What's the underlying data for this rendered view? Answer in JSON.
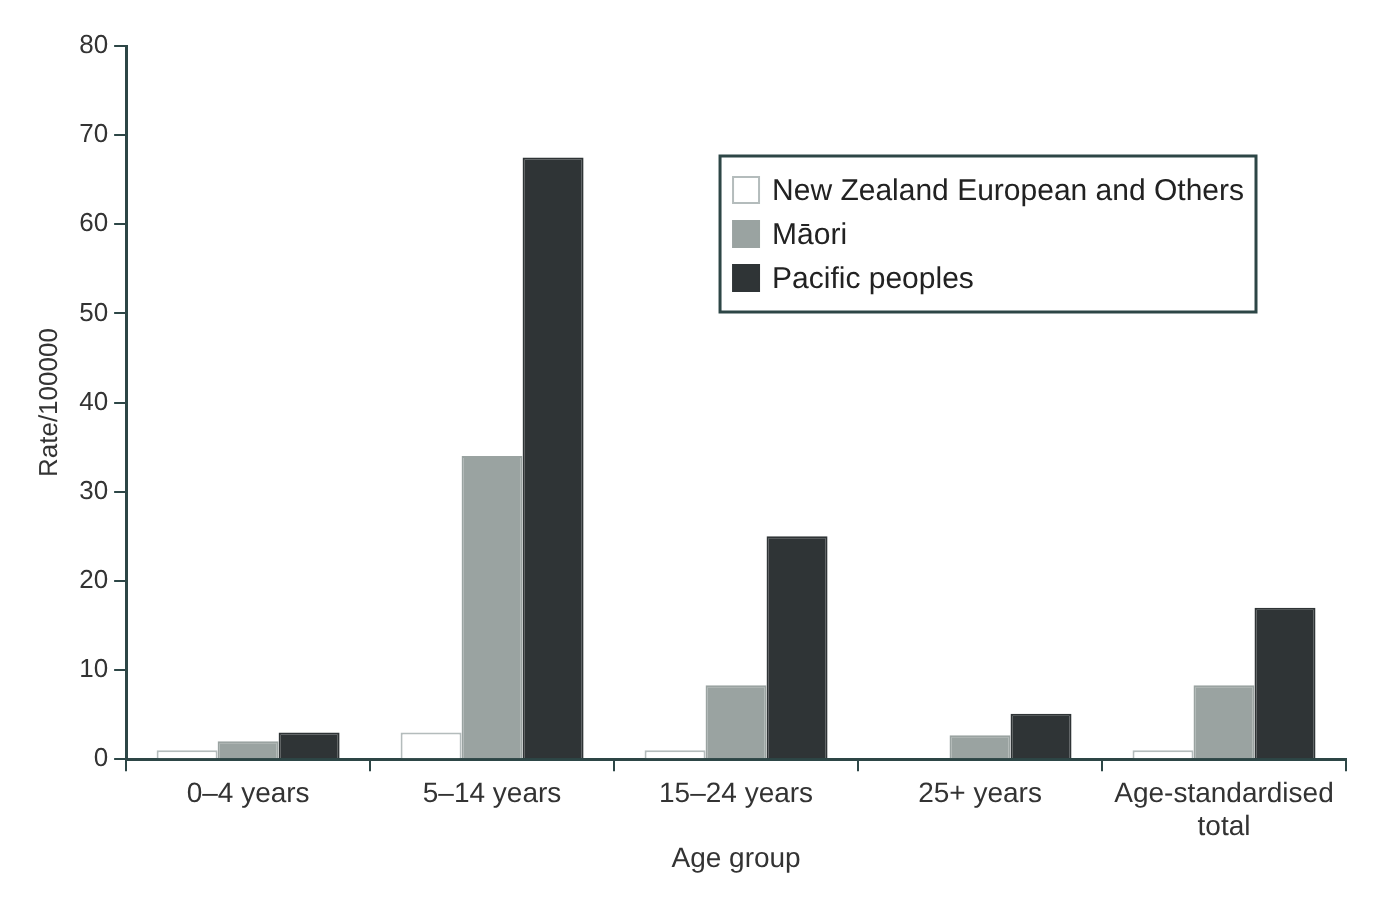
{
  "chart_data": {
    "type": "bar",
    "xlabel": "Age group",
    "ylabel": "Rate/100000",
    "categories": [
      "0–4 years",
      "5–14 years",
      "15–24 years",
      "25+ years",
      "Age-standardised total"
    ],
    "series": [
      {
        "name": "New Zealand European and Others",
        "color": "#ffffff",
        "values": [
          1,
          3,
          1,
          0,
          1
        ]
      },
      {
        "name": "Māori",
        "color": "#9aa3a1",
        "values": [
          2,
          34,
          8.3,
          2.7,
          8.3
        ]
      },
      {
        "name": "Pacific peoples",
        "color": "#2f3436",
        "values": [
          3,
          67.5,
          25,
          5.1,
          17
        ]
      }
    ],
    "ylim": [
      0,
      80
    ],
    "yticks": [
      0,
      10,
      20,
      30,
      40,
      50,
      60,
      70,
      80
    ],
    "grid": false,
    "legend": "top right"
  }
}
